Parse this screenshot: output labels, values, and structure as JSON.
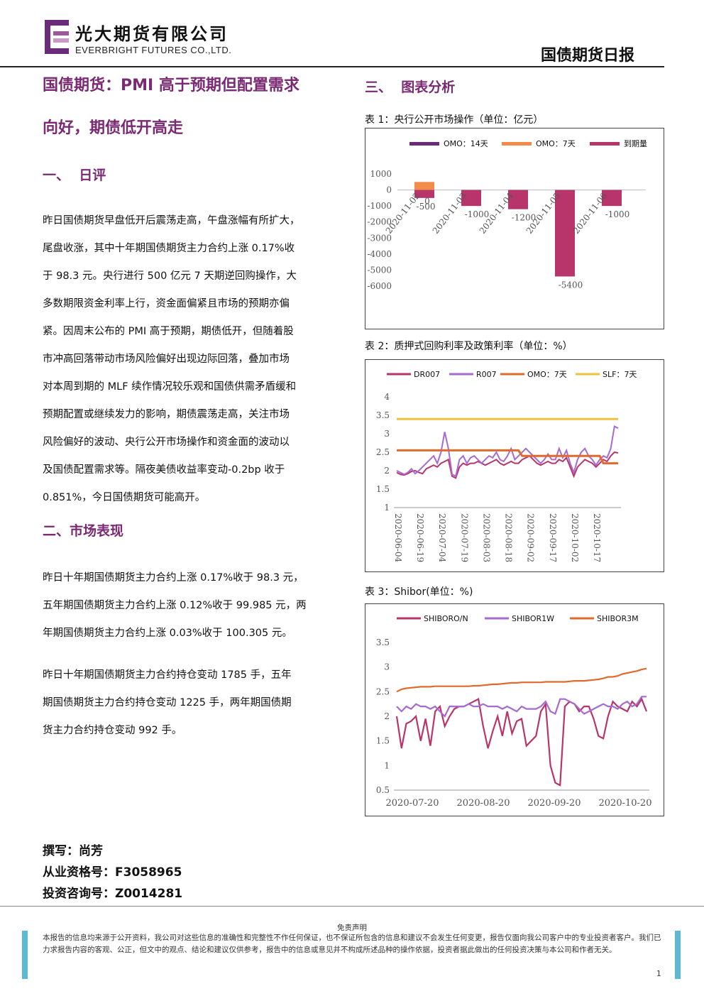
{
  "header": {
    "company_cn": "光大期货有限公司",
    "company_en": "EVERBRIGHT FUTURES CO.,LTD.",
    "report_name": "国债期货日报"
  },
  "article": {
    "title_line1": "国债期货：PMI 高于预期但配置需求",
    "title_line2": "向好，期债低开高走"
  },
  "section1": {
    "heading": "一、  日评",
    "lines": [
      "昨日国债期货早盘低开后震荡走高，午盘涨幅有所扩大，",
      "尾盘收涨，其中十年期国债期货主力合约上涨 0.17%收",
      "于 98.3 元。央行进行 500 亿元 7 天期逆回购操作，大",
      "多数期限资金利率上行，资金面偏紧且市场的预期亦偏",
      "紧。因周末公布的 PMI 高于预期，期债低开，但随着股",
      "市冲高回落带动市场风险偏好出现边际回落，叠加市场",
      "对本周到期的 MLF 续作情况较乐观和国债供需矛盾缓和",
      "预期配置或继续发力的影响，期债震荡走高，关注市场",
      "风险偏好的波动、央行公开市场操作和资金面的波动以",
      "及国债配置需求等。隔夜美债收益率变动-0.2bp 收于",
      "0.851%，今日国债期货可能高开。"
    ]
  },
  "section2": {
    "heading": "二、市场表现",
    "para1": [
      "昨日十年期国债期货主力合约上涨 0.17%收于 98.3 元，",
      "五年期国债期货主力合约上涨 0.12%收于 99.985 元，两",
      "年期国债期货主力合约上涨 0.03%收于 100.305 元。"
    ],
    "para2": [
      "昨日十年期国债期货主力合约持仓变动 1785 手，五年",
      "期国债期货主力合约持仓变动 1225 手，两年期国债期",
      "货主力合约持仓变动 992 手。"
    ]
  },
  "section3": {
    "heading": "三、  图表分析"
  },
  "author": {
    "writer": "撰写：尚芳",
    "license": "从业资格号：F3058965",
    "consult": "投资咨询号：Z0014281"
  },
  "disclaimer": {
    "title": "免责声明",
    "text": "本报告的信息均来源于公开资料，我公司对这些信息的准确性和完整性不作任何保证，也不保证所包含的信息和建议不会发生任何变更，报告仅面向我公司客户中的专业投资者客户。我们已力求报告内容的客观、公正，但文中的观点、结论和建议仅供参考，报告中的信息或意见并不构成所述品种的操作依据，投资者据此做出的任何投资决策与本公司和作者无关。",
    "page": "1"
  },
  "colors": {
    "accent": "#7a2a73",
    "omo14": "#6b2a7a",
    "omo7": "#f28c4a",
    "maturity": "#b8356b",
    "dr007": "#b8356b",
    "r007": "#a66ad0",
    "omo7line": "#e06a2c",
    "slf": "#f0c23a",
    "shibor_on": "#b8356b",
    "shibor_1w": "#a66ad0",
    "shibor_3m": "#e06a2c",
    "sidebar": "#5bb8d6"
  },
  "chart_data": [
    {
      "caption": "表 1：央行公开市场操作（单位：亿元）",
      "type": "bar",
      "legend": [
        "OMO：14天",
        "OMO：7天",
        "到期量"
      ],
      "legend_position": "top",
      "categories": [
        "2020-11-02",
        "2020-11-03",
        "2020-11-04",
        "2020-11-05",
        "2020-11-06"
      ],
      "series": [
        {
          "name": "OMO：14天",
          "values": [
            0,
            0,
            0,
            0,
            0
          ]
        },
        {
          "name": "OMO：7天",
          "values": [
            500,
            0,
            0,
            0,
            0
          ]
        },
        {
          "name": "到期量",
          "values": [
            -500,
            -1000,
            -1200,
            -5400,
            -1000
          ]
        }
      ],
      "data_labels": [
        "0",
        "-500",
        "-1000",
        "-1200",
        "-5400",
        "-1000"
      ],
      "y_ticks": [
        "1000",
        "0",
        "-1000",
        "-2000",
        "-3000",
        "-4000",
        "-5000",
        "-6000"
      ],
      "ylim": [
        -6000,
        1000
      ]
    },
    {
      "caption": "表 2：质押式回购利率及政策利率（单位：%）",
      "type": "line",
      "legend": [
        "DR007",
        "R007",
        "OMO：7天",
        "SLF：7天"
      ],
      "legend_position": "top",
      "x_ticks": [
        "2020-06-04",
        "2020-06-19",
        "2020-07-04",
        "2020-07-19",
        "2020-08-03",
        "2020-08-18",
        "2020-09-02",
        "2020-09-17",
        "2020-10-02",
        "2020-10-17"
      ],
      "y_ticks": [
        "4",
        "3.5",
        "3",
        "2.5",
        "2",
        "1.5",
        "1"
      ],
      "ylim": [
        1,
        4
      ],
      "series": [
        {
          "name": "DR007",
          "values": [
            1.95,
            1.9,
            1.88,
            1.92,
            1.98,
            2.0,
            1.95,
            1.92,
            2.05,
            2.1,
            2.15,
            2.1,
            2.2,
            2.25,
            2.3,
            1.85,
            1.8,
            2.1,
            2.2,
            2.15,
            2.2,
            2.2,
            2.25,
            2.2,
            2.15,
            2.2,
            2.25,
            2.3,
            2.2,
            2.15,
            2.2,
            2.25,
            2.2,
            2.2,
            2.3,
            2.35,
            2.4,
            2.3,
            2.2,
            2.15,
            2.2,
            2.25,
            2.2,
            2.2,
            2.3,
            2.25,
            2.35,
            2.1,
            1.85,
            2.1,
            2.2,
            2.3,
            2.25,
            2.2,
            2.1,
            2.2,
            2.3,
            2.25,
            2.4,
            2.5,
            2.48
          ]
        },
        {
          "name": "R007",
          "values": [
            2.0,
            1.95,
            1.9,
            1.95,
            2.05,
            1.92,
            2.0,
            2.1,
            2.2,
            2.3,
            2.4,
            2.2,
            2.5,
            3.05,
            2.6,
            1.9,
            1.85,
            2.3,
            2.4,
            2.2,
            2.35,
            2.4,
            2.3,
            2.2,
            2.3,
            2.4,
            2.35,
            2.5,
            2.3,
            2.25,
            2.4,
            2.6,
            2.3,
            2.4,
            2.5,
            2.6,
            2.5,
            2.4,
            2.3,
            2.2,
            2.3,
            2.45,
            2.3,
            2.3,
            2.6,
            2.35,
            2.55,
            2.2,
            1.95,
            2.3,
            2.5,
            2.6,
            2.4,
            2.3,
            2.15,
            2.3,
            2.4,
            2.35,
            2.6,
            3.2,
            3.15
          ]
        },
        {
          "name": "OMO：7天",
          "values": [
            2.55,
            2.55,
            2.55,
            2.55,
            2.55,
            2.55,
            2.55,
            2.55,
            2.55,
            2.55,
            2.55,
            2.55,
            2.55,
            2.55,
            2.55,
            2.55,
            2.55,
            2.55,
            2.55,
            2.55,
            2.55,
            2.55,
            2.55,
            2.55,
            2.55,
            2.55,
            2.55,
            2.55,
            2.55,
            2.55,
            2.55,
            2.55,
            2.55,
            2.55,
            2.4,
            2.4,
            2.4,
            2.4,
            2.4,
            2.4,
            2.4,
            2.4,
            2.4,
            2.4,
            2.4,
            2.4,
            2.4,
            2.4,
            2.4,
            2.4,
            2.4,
            2.4,
            2.4,
            2.4,
            2.4,
            2.4,
            2.2,
            2.2,
            2.2,
            2.2,
            2.2
          ]
        },
        {
          "name": "SLF：7天",
          "values": [
            3.4,
            3.4,
            3.4,
            3.4,
            3.4,
            3.4,
            3.4,
            3.4,
            3.4,
            3.4,
            3.4,
            3.4,
            3.4,
            3.4,
            3.4,
            3.4,
            3.4,
            3.4,
            3.4,
            3.4,
            3.4,
            3.4,
            3.4,
            3.4,
            3.4,
            3.4,
            3.4,
            3.4,
            3.4,
            3.4,
            3.4,
            3.4,
            3.4,
            3.4,
            3.4,
            3.4,
            3.4,
            3.4,
            3.4,
            3.4,
            3.4,
            3.4,
            3.4,
            3.4,
            3.4,
            3.4,
            3.4,
            3.4,
            3.4,
            3.4,
            3.4,
            3.4,
            3.4,
            3.4,
            3.4,
            3.4,
            3.4,
            3.4,
            3.4,
            3.4,
            3.4
          ]
        }
      ]
    },
    {
      "caption": "表 3：Shibor(单位：%)",
      "type": "line",
      "legend": [
        "SHIBORO/N",
        "SHIBOR1W",
        "SHIBOR3M"
      ],
      "legend_position": "top",
      "x_ticks": [
        "2020-07-20",
        "2020-08-20",
        "2020-09-20",
        "2020-10-20"
      ],
      "y_ticks": [
        "3.5",
        "3",
        "2.5",
        "2",
        "1.5",
        "1",
        "0.5"
      ],
      "ylim": [
        0.5,
        3.5
      ],
      "series": [
        {
          "name": "SHIBORO/N",
          "values": [
            2.0,
            1.35,
            1.85,
            1.9,
            2.0,
            1.5,
            1.95,
            1.4,
            2.1,
            2.2,
            1.8,
            2.0,
            2.15,
            2.2,
            2.2,
            2.25,
            2.3,
            2.35,
            1.8,
            1.35,
            1.7,
            2.0,
            1.6,
            2.1,
            1.65,
            1.9,
            1.95,
            1.4,
            1.5,
            1.6,
            2.1,
            2.25,
            1.0,
            0.65,
            0.6,
            2.2,
            2.3,
            2.25,
            2.1,
            2.2,
            2.2,
            1.95,
            1.6,
            1.55,
            2.0,
            2.3,
            2.2,
            2.15,
            2.1,
            2.3,
            2.2,
            2.35,
            2.1
          ]
        },
        {
          "name": "SHIBOR1W",
          "values": [
            2.2,
            2.1,
            2.2,
            2.15,
            2.25,
            2.2,
            2.2,
            2.15,
            2.2,
            2.1,
            2.0,
            2.2,
            2.2,
            2.2,
            2.2,
            2.25,
            2.2,
            2.2,
            2.25,
            2.2,
            2.2,
            2.2,
            2.15,
            2.2,
            2.15,
            2.1,
            2.2,
            2.15,
            2.15,
            2.15,
            2.2,
            2.3,
            2.1,
            2.05,
            2.35,
            2.35,
            2.3,
            2.25,
            2.15,
            2.05,
            2.1,
            2.15,
            2.2,
            2.25,
            2.2,
            2.2,
            2.15,
            2.25,
            2.3,
            2.2,
            2.25,
            2.4,
            2.4
          ]
        },
        {
          "name": "SHIBOR3M",
          "values": [
            2.5,
            2.55,
            2.57,
            2.58,
            2.59,
            2.6,
            2.6,
            2.6,
            2.61,
            2.61,
            2.61,
            2.61,
            2.61,
            2.61,
            2.61,
            2.61,
            2.62,
            2.62,
            2.63,
            2.64,
            2.65,
            2.65,
            2.66,
            2.67,
            2.68,
            2.68,
            2.69,
            2.69,
            2.69,
            2.69,
            2.69,
            2.7,
            2.7,
            2.7,
            2.7,
            2.7,
            2.71,
            2.72,
            2.72,
            2.72,
            2.73,
            2.74,
            2.75,
            2.77,
            2.8,
            2.8,
            2.82,
            2.86,
            2.88,
            2.9,
            2.92,
            2.95,
            2.97
          ]
        }
      ]
    }
  ]
}
